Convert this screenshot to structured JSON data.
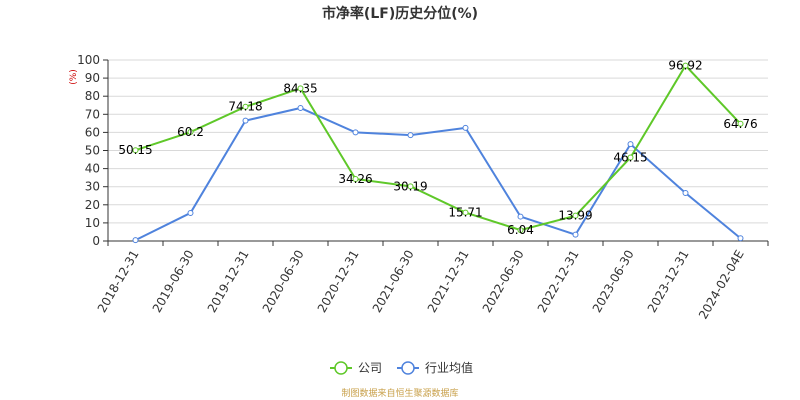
{
  "chart_data": {
    "type": "line",
    "title": "市净率(LF)历史分位(%)",
    "ylabel": "(%)",
    "xlabel": "",
    "ylim": [
      0,
      100
    ],
    "yticks": [
      0,
      10,
      20,
      30,
      40,
      50,
      60,
      70,
      80,
      90,
      100
    ],
    "categories": [
      "2018-12-31",
      "2019-06-30",
      "2019-12-31",
      "2020-06-30",
      "2020-12-31",
      "2021-06-30",
      "2021-12-31",
      "2022-06-30",
      "2022-12-31",
      "2023-06-30",
      "2023-12-31",
      "2024-02-04E"
    ],
    "series": [
      {
        "name": "公司",
        "color": "#5fc829",
        "values": [
          50.15,
          60.2,
          74.18,
          84.35,
          34.26,
          30.19,
          15.71,
          6.04,
          13.99,
          46.15,
          96.92,
          64.76
        ],
        "labels": [
          "50.15",
          "60.2",
          "74.18",
          "84.35",
          "34.26",
          "30.19",
          "15.71",
          "6.04",
          "13.99",
          "46.15",
          "96.92",
          "64.76"
        ]
      },
      {
        "name": "行业均值",
        "color": "#4f83dd",
        "values": [
          0.5,
          15.5,
          66.5,
          73.5,
          60,
          58.5,
          62.5,
          13.5,
          3.5,
          53.5,
          26.5,
          1.5
        ]
      }
    ],
    "grid": true,
    "legend": "bottom-center",
    "source": "制图数据来自恒生聚源数据库"
  }
}
